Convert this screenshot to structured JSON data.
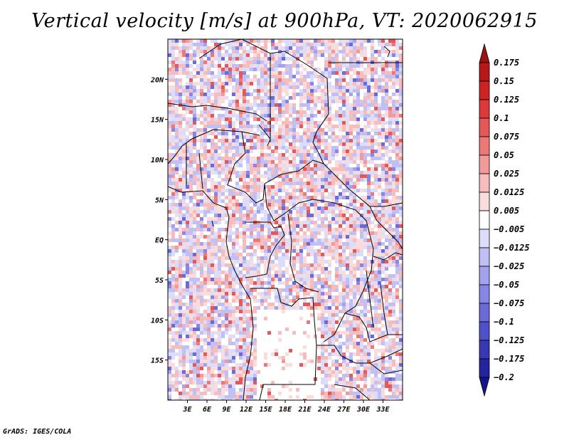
{
  "title": "Vertical velocity [m/s] at 900hPa, VT: 2020062915",
  "footer": "GrADS: IGES/COLA",
  "chart_data": {
    "type": "heatmap",
    "title": "Vertical velocity [m/s] at 900hPa, VT: 2020062915",
    "variable": "Vertical velocity",
    "units": "m/s",
    "level": "900hPa",
    "valid_time": "2020062915",
    "x_range": [
      0,
      36
    ],
    "y_range": [
      -20,
      25
    ],
    "xticks": [
      {
        "value": 3,
        "label": "3E"
      },
      {
        "value": 6,
        "label": "6E"
      },
      {
        "value": 9,
        "label": "9E"
      },
      {
        "value": 12,
        "label": "12E"
      },
      {
        "value": 15,
        "label": "15E"
      },
      {
        "value": 18,
        "label": "18E"
      },
      {
        "value": 21,
        "label": "21E"
      },
      {
        "value": 24,
        "label": "24E"
      },
      {
        "value": 27,
        "label": "27E"
      },
      {
        "value": 30,
        "label": "30E"
      },
      {
        "value": 33,
        "label": "33E"
      }
    ],
    "yticks": [
      {
        "value": 20,
        "label": "20N"
      },
      {
        "value": 15,
        "label": "15N"
      },
      {
        "value": 10,
        "label": "10N"
      },
      {
        "value": 5,
        "label": "5N"
      },
      {
        "value": 0,
        "label": "EQ"
      },
      {
        "value": -5,
        "label": "5S"
      },
      {
        "value": -10,
        "label": "10S"
      },
      {
        "value": -15,
        "label": "15S"
      }
    ],
    "colorbar": {
      "labels": [
        "0.175",
        "0.15",
        "0.125",
        "0.1",
        "0.075",
        "0.05",
        "0.025",
        "0.0125",
        "0.005",
        "−0.005",
        "−0.0125",
        "−0.025",
        "−0.05",
        "−0.075",
        "−0.1",
        "−0.125",
        "−0.175",
        "−0.2"
      ],
      "colors": [
        "#a01010",
        "#b81818",
        "#cc2424",
        "#dc3a3a",
        "#e45858",
        "#ec7878",
        "#f29a9a",
        "#f7bcbc",
        "#fbdcdc",
        "#ffffff",
        "#dcdcfb",
        "#c0c0f5",
        "#a2a2ee",
        "#8686e6",
        "#6a6ad8",
        "#5050c8",
        "#3838b4",
        "#2424a0",
        "#14148a"
      ]
    }
  }
}
